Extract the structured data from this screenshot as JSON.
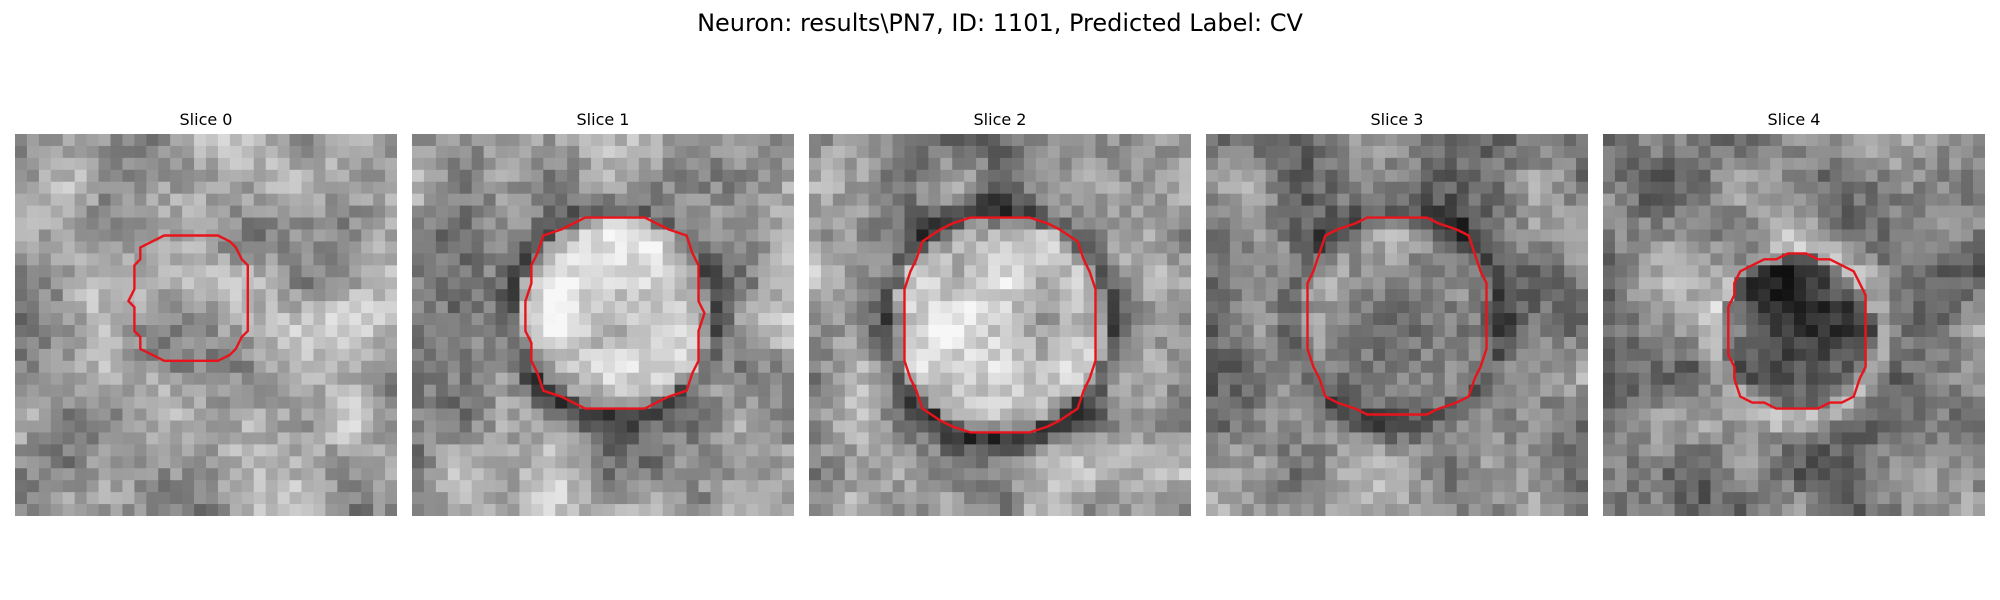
{
  "figure": {
    "title": "Neuron: results\\PN7, ID: 1101, Predicted Label: CV",
    "contour_color": "#e8141c"
  },
  "slices": [
    {
      "title": "Slice 0"
    },
    {
      "title": "Slice 1"
    },
    {
      "title": "Slice 2"
    },
    {
      "title": "Slice 3"
    },
    {
      "title": "Slice 4"
    }
  ]
}
